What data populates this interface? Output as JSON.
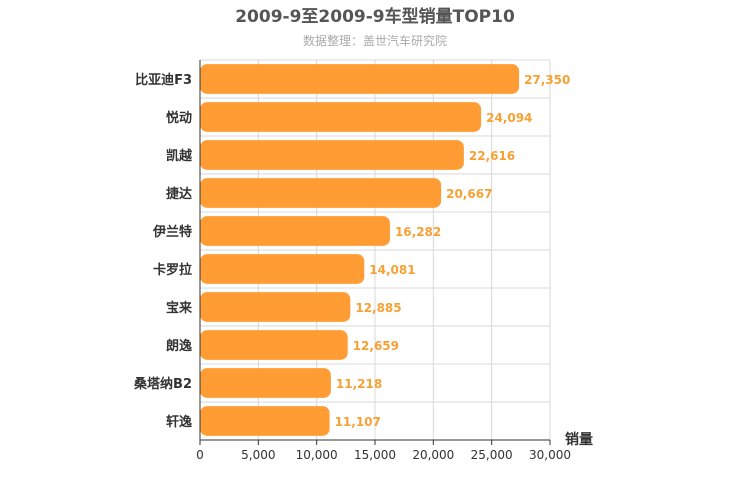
{
  "chart_data": {
    "type": "bar",
    "orientation": "horizontal",
    "title": "2009-9至2009-9车型销量TOP10",
    "subtitle": "数据整理：盖世汽车研究院",
    "categories": [
      "比亚迪F3",
      "悦动",
      "凯越",
      "捷达",
      "伊兰特",
      "卡罗拉",
      "宝来",
      "朗逸",
      "桑塔纳B2",
      "轩逸"
    ],
    "values": [
      27350,
      24094,
      22616,
      20667,
      16282,
      14081,
      12885,
      12659,
      11218,
      11107
    ],
    "value_labels": [
      "27,350",
      "24,094",
      "22,616",
      "20,667",
      "16,282",
      "14,081",
      "12,885",
      "12,659",
      "11,218",
      "11,107"
    ],
    "xlabel": "销量",
    "xlim": [
      0,
      30000
    ],
    "xticks": [
      0,
      5000,
      10000,
      15000,
      20000,
      25000,
      30000
    ],
    "xtick_labels": [
      "0",
      "5,000",
      "10,000",
      "15,000",
      "20,000",
      "25,000",
      "30,000"
    ],
    "grid": true,
    "bar_color": "#ff9c33",
    "label_color": "#f7a135"
  }
}
